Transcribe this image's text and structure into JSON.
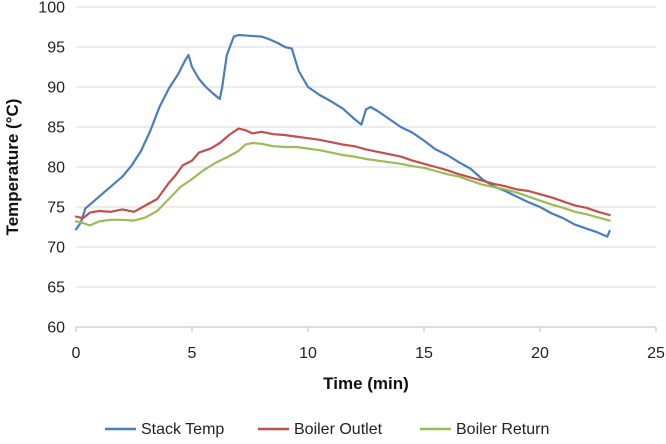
{
  "chart_data": {
    "type": "line",
    "title": "",
    "xlabel": "Time (min)",
    "ylabel": "Temperature (°C)",
    "xlim": [
      0,
      25
    ],
    "ylim": [
      60,
      100
    ],
    "xticks": [
      0,
      5,
      10,
      15,
      20,
      25
    ],
    "yticks": [
      60,
      65,
      70,
      75,
      80,
      85,
      90,
      95,
      100
    ],
    "grid": "horizontal",
    "legend_position": "bottom",
    "series": [
      {
        "name": "Stack Temp",
        "color": "#4a7ebb",
        "points": [
          [
            0,
            72.2
          ],
          [
            0.2,
            73.0
          ],
          [
            0.4,
            74.8
          ],
          [
            0.8,
            75.8
          ],
          [
            1.2,
            76.8
          ],
          [
            1.6,
            77.8
          ],
          [
            2.0,
            78.8
          ],
          [
            2.4,
            80.2
          ],
          [
            2.8,
            82.0
          ],
          [
            3.2,
            84.5
          ],
          [
            3.6,
            87.5
          ],
          [
            4.0,
            89.8
          ],
          [
            4.4,
            91.6
          ],
          [
            4.7,
            93.3
          ],
          [
            4.85,
            94.0
          ],
          [
            5.0,
            92.5
          ],
          [
            5.3,
            91.0
          ],
          [
            5.6,
            90.0
          ],
          [
            5.9,
            89.2
          ],
          [
            6.2,
            88.5
          ],
          [
            6.3,
            90.0
          ],
          [
            6.5,
            94.0
          ],
          [
            6.8,
            96.3
          ],
          [
            7.0,
            96.5
          ],
          [
            7.5,
            96.4
          ],
          [
            8.0,
            96.3
          ],
          [
            8.3,
            96.0
          ],
          [
            8.7,
            95.5
          ],
          [
            9.0,
            95.0
          ],
          [
            9.3,
            94.8
          ],
          [
            9.6,
            92.0
          ],
          [
            10.0,
            90.0
          ],
          [
            10.5,
            89.0
          ],
          [
            11.0,
            88.2
          ],
          [
            11.5,
            87.3
          ],
          [
            12.0,
            86.0
          ],
          [
            12.3,
            85.3
          ],
          [
            12.5,
            87.2
          ],
          [
            12.7,
            87.5
          ],
          [
            13.0,
            87.0
          ],
          [
            13.5,
            86.0
          ],
          [
            14.0,
            85.0
          ],
          [
            14.5,
            84.3
          ],
          [
            15.0,
            83.3
          ],
          [
            15.5,
            82.2
          ],
          [
            16.0,
            81.5
          ],
          [
            16.5,
            80.6
          ],
          [
            17.0,
            79.8
          ],
          [
            17.5,
            78.5
          ],
          [
            18.0,
            77.6
          ],
          [
            18.5,
            77.0
          ],
          [
            19.0,
            76.3
          ],
          [
            19.5,
            75.6
          ],
          [
            20.0,
            75.0
          ],
          [
            20.5,
            74.2
          ],
          [
            21.0,
            73.6
          ],
          [
            21.5,
            72.8
          ],
          [
            22.0,
            72.3
          ],
          [
            22.5,
            71.8
          ],
          [
            22.9,
            71.3
          ],
          [
            23.0,
            72.0
          ]
        ]
      },
      {
        "name": "Boiler Outlet",
        "color": "#c0504d",
        "points": [
          [
            0,
            73.8
          ],
          [
            0.3,
            73.6
          ],
          [
            0.6,
            74.3
          ],
          [
            1.0,
            74.5
          ],
          [
            1.5,
            74.4
          ],
          [
            2.0,
            74.7
          ],
          [
            2.5,
            74.4
          ],
          [
            3.0,
            75.2
          ],
          [
            3.5,
            76.0
          ],
          [
            3.8,
            77.2
          ],
          [
            4.0,
            78.0
          ],
          [
            4.3,
            79.0
          ],
          [
            4.6,
            80.2
          ],
          [
            5.0,
            80.8
          ],
          [
            5.3,
            81.8
          ],
          [
            5.8,
            82.3
          ],
          [
            6.2,
            83.0
          ],
          [
            6.6,
            84.0
          ],
          [
            7.0,
            84.8
          ],
          [
            7.3,
            84.6
          ],
          [
            7.6,
            84.2
          ],
          [
            8.0,
            84.4
          ],
          [
            8.5,
            84.1
          ],
          [
            9.0,
            84.0
          ],
          [
            9.5,
            83.8
          ],
          [
            10.0,
            83.6
          ],
          [
            10.5,
            83.4
          ],
          [
            11.0,
            83.1
          ],
          [
            11.5,
            82.8
          ],
          [
            12.0,
            82.6
          ],
          [
            12.5,
            82.2
          ],
          [
            13.0,
            81.9
          ],
          [
            13.5,
            81.6
          ],
          [
            14.0,
            81.3
          ],
          [
            14.5,
            80.8
          ],
          [
            15.0,
            80.4
          ],
          [
            15.5,
            80.0
          ],
          [
            16.0,
            79.6
          ],
          [
            16.5,
            79.1
          ],
          [
            17.0,
            78.7
          ],
          [
            17.5,
            78.3
          ],
          [
            18.0,
            77.9
          ],
          [
            18.5,
            77.6
          ],
          [
            19.0,
            77.2
          ],
          [
            19.5,
            77.0
          ],
          [
            20.0,
            76.6
          ],
          [
            20.5,
            76.2
          ],
          [
            21.0,
            75.7
          ],
          [
            21.5,
            75.2
          ],
          [
            22.0,
            74.9
          ],
          [
            22.5,
            74.4
          ],
          [
            23.0,
            74.0
          ]
        ]
      },
      {
        "name": "Boiler Return",
        "color": "#9bbb59",
        "points": [
          [
            0,
            73.2
          ],
          [
            0.3,
            73.0
          ],
          [
            0.6,
            72.7
          ],
          [
            1.0,
            73.2
          ],
          [
            1.5,
            73.4
          ],
          [
            2.0,
            73.4
          ],
          [
            2.5,
            73.3
          ],
          [
            3.0,
            73.7
          ],
          [
            3.5,
            74.5
          ],
          [
            4.0,
            76.0
          ],
          [
            4.5,
            77.5
          ],
          [
            5.0,
            78.5
          ],
          [
            5.5,
            79.6
          ],
          [
            6.0,
            80.5
          ],
          [
            6.5,
            81.2
          ],
          [
            7.0,
            82.0
          ],
          [
            7.3,
            82.8
          ],
          [
            7.6,
            83.0
          ],
          [
            8.0,
            82.9
          ],
          [
            8.5,
            82.6
          ],
          [
            9.0,
            82.5
          ],
          [
            9.5,
            82.5
          ],
          [
            10.0,
            82.3
          ],
          [
            10.5,
            82.1
          ],
          [
            11.0,
            81.8
          ],
          [
            11.5,
            81.5
          ],
          [
            12.0,
            81.3
          ],
          [
            12.5,
            81.0
          ],
          [
            13.0,
            80.8
          ],
          [
            13.5,
            80.6
          ],
          [
            14.0,
            80.4
          ],
          [
            14.5,
            80.1
          ],
          [
            15.0,
            79.9
          ],
          [
            15.5,
            79.5
          ],
          [
            16.0,
            79.1
          ],
          [
            16.5,
            78.8
          ],
          [
            17.0,
            78.3
          ],
          [
            17.5,
            77.8
          ],
          [
            18.0,
            77.5
          ],
          [
            18.5,
            77.2
          ],
          [
            19.0,
            76.8
          ],
          [
            19.5,
            76.3
          ],
          [
            20.0,
            75.8
          ],
          [
            20.5,
            75.3
          ],
          [
            21.0,
            74.9
          ],
          [
            21.5,
            74.4
          ],
          [
            22.0,
            74.1
          ],
          [
            22.5,
            73.7
          ],
          [
            23.0,
            73.3
          ]
        ]
      }
    ]
  }
}
